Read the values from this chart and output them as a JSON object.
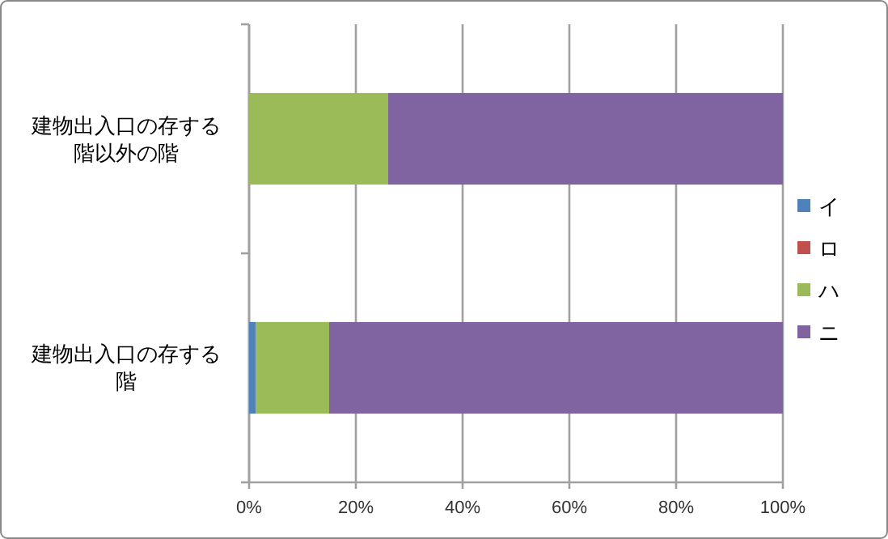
{
  "chart_data": {
    "type": "bar",
    "orientation": "horizontal",
    "stacked": true,
    "categories": [
      "建物出入口の存する階以外の階",
      "建物出入口の存する階"
    ],
    "series": [
      {
        "name": "イ",
        "color": "#4f81bd",
        "values": [
          0,
          1.3
        ]
      },
      {
        "name": "ロ",
        "color": "#c0504d",
        "values": [
          0,
          0
        ]
      },
      {
        "name": "ハ",
        "color": "#9bbb59",
        "values": [
          26,
          13.7
        ]
      },
      {
        "name": "ニ",
        "color": "#8064a2",
        "values": [
          74,
          85
        ]
      }
    ],
    "xlim": [
      0,
      100
    ],
    "xticks": [
      {
        "value": 0,
        "label": "0%"
      },
      {
        "value": 20,
        "label": "20%"
      },
      {
        "value": 40,
        "label": "40%"
      },
      {
        "value": 60,
        "label": "60%"
      },
      {
        "value": 80,
        "label": "80%"
      },
      {
        "value": 100,
        "label": "100%"
      }
    ],
    "grid": "x",
    "legend": "right"
  }
}
